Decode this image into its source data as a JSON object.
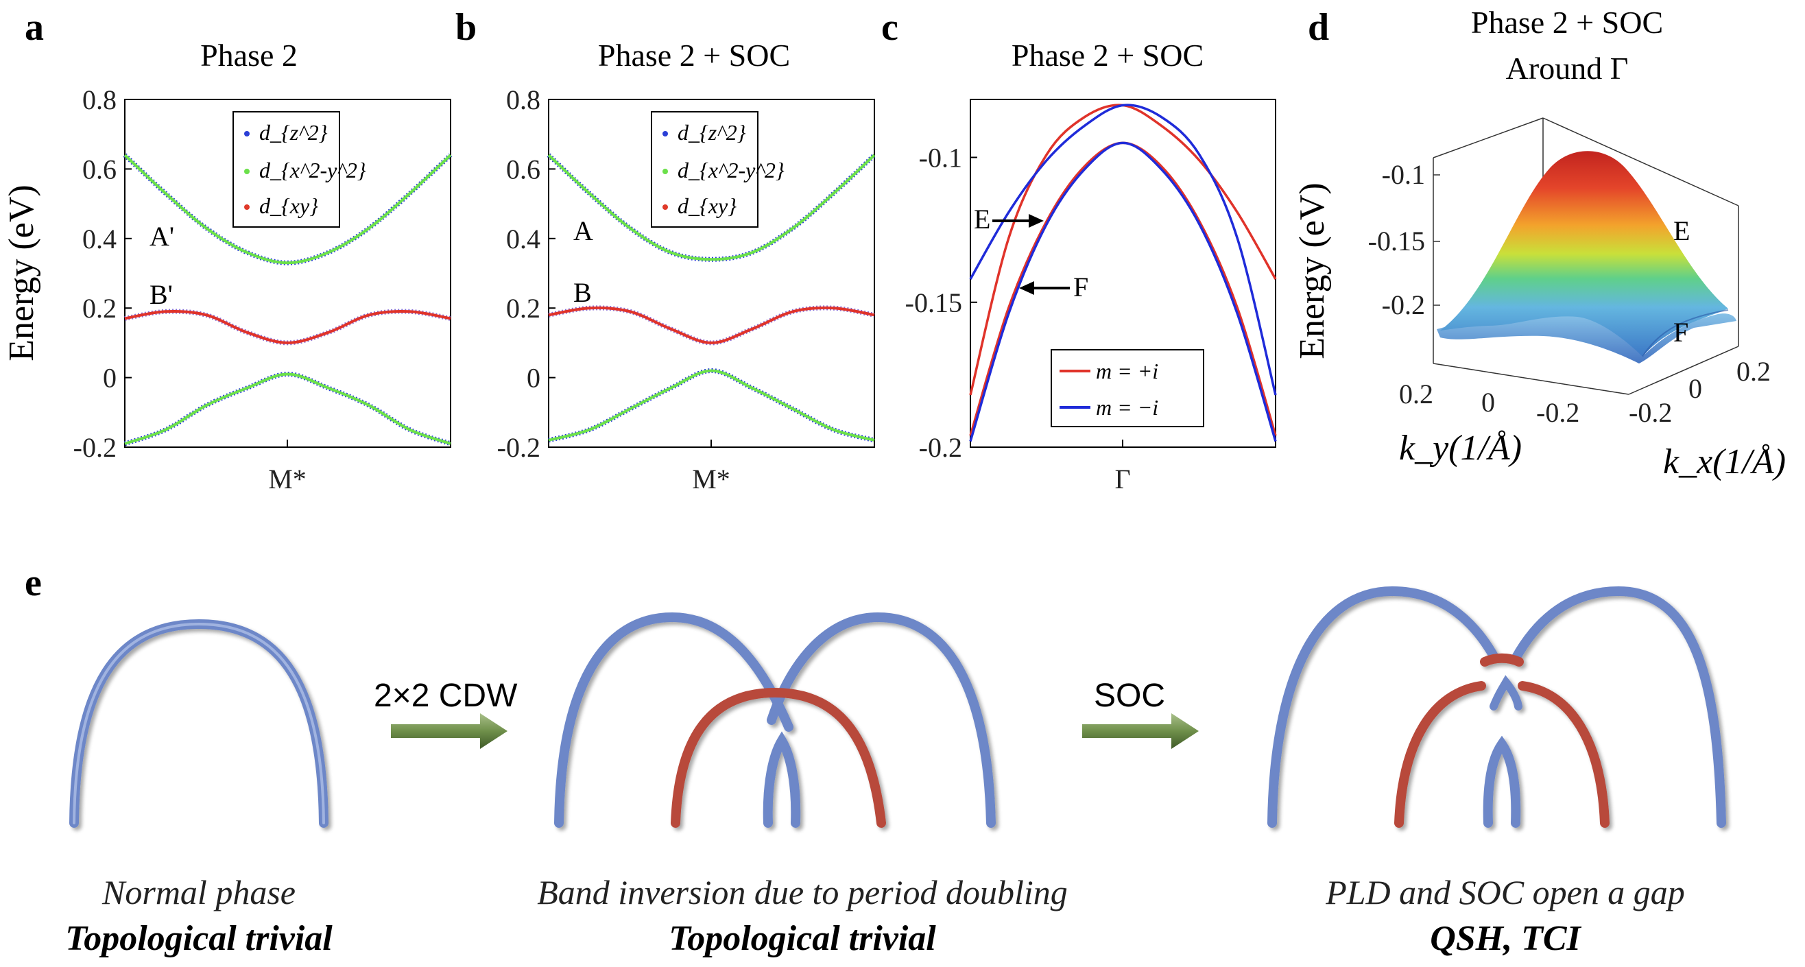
{
  "panels": {
    "a": {
      "letter": "a",
      "title": "Phase 2",
      "label_upper": "A'",
      "label_lower": "B'",
      "xtick": "M*"
    },
    "b": {
      "letter": "b",
      "title": "Phase 2 + SOC",
      "label_upper": "A",
      "label_lower": "B",
      "xtick": "M*"
    },
    "c": {
      "letter": "c",
      "title": "Phase 2 + SOC",
      "label_e": "E",
      "label_f": "F",
      "xtick": "Γ"
    },
    "d": {
      "letter": "d",
      "title_line1": "Phase 2 + SOC",
      "title_line2": "Around Γ",
      "label_e": "E",
      "label_f": "F",
      "ylabel": "Energy (eV)",
      "ky_label": "k_y(1/Å)",
      "kx_label": "k_x(1/Å)",
      "zticks": [
        "-0.1",
        "-0.15",
        "-0.2"
      ],
      "kyticks": [
        "0.2",
        "0",
        "-0.2"
      ],
      "kxticks": [
        "-0.2",
        "0",
        "0.2"
      ]
    },
    "e": {
      "letter": "e",
      "arrow1_label": "2×2 CDW",
      "arrow2_label": "SOC",
      "cap1_line1": "Normal phase",
      "cap1_line2": "Topological trivial",
      "cap2_line1": "Band inversion due to period doubling",
      "cap2_line2": "Topological trivial",
      "cap3_line1": "PLD and SOC open a gap",
      "cap3_line2": "QSH, TCI"
    }
  },
  "legend_ab": [
    "d_{z^2}",
    "d_{x^2-y^2}",
    "d_{xy}"
  ],
  "legend_c": [
    "m = +i",
    "m = −i"
  ],
  "colors": {
    "blue_dot": "#2b3fd6",
    "green_dot": "#6be04a",
    "red_dot": "#e03a2a",
    "red_line": "#e0332a",
    "blue_line": "#1f2bd9",
    "band_blue": "#6d87c8",
    "band_red": "#b8483a",
    "arrow_green": "#6f8f4a"
  },
  "chart_data": [
    {
      "type": "line",
      "title": "Phase 2",
      "ylabel": "Energy (eV)",
      "ylim": [
        -0.2,
        0.8
      ],
      "yticks": [
        "0.8",
        "0.6",
        "0.4",
        "0.2",
        "0",
        "-0.2"
      ],
      "x": [
        -1,
        -0.75,
        -0.5,
        -0.25,
        0,
        0.25,
        0.5,
        0.75,
        1
      ],
      "xtick": "M*",
      "series": [
        {
          "name": "A'",
          "values": [
            0.64,
            0.53,
            0.43,
            0.36,
            0.33,
            0.36,
            0.43,
            0.53,
            0.64
          ]
        },
        {
          "name": "B'",
          "values": [
            0.17,
            0.19,
            0.18,
            0.13,
            0.1,
            0.13,
            0.18,
            0.19,
            0.17
          ]
        },
        {
          "name": "lower",
          "values": [
            -0.19,
            -0.15,
            -0.08,
            -0.03,
            0.01,
            -0.03,
            -0.08,
            -0.15,
            -0.19
          ]
        }
      ]
    },
    {
      "type": "line",
      "title": "Phase 2 + SOC",
      "ylim": [
        -0.2,
        0.8
      ],
      "yticks": [
        "0.8",
        "0.6",
        "0.4",
        "0.2",
        "0",
        "-0.2"
      ],
      "x": [
        -1,
        -0.75,
        -0.5,
        -0.25,
        0,
        0.25,
        0.5,
        0.75,
        1
      ],
      "xtick": "M*",
      "series": [
        {
          "name": "A",
          "values": [
            0.64,
            0.53,
            0.43,
            0.36,
            0.34,
            0.36,
            0.43,
            0.53,
            0.64
          ]
        },
        {
          "name": "B",
          "values": [
            0.18,
            0.2,
            0.19,
            0.14,
            0.1,
            0.14,
            0.19,
            0.2,
            0.18
          ]
        },
        {
          "name": "lower",
          "values": [
            -0.18,
            -0.15,
            -0.09,
            -0.03,
            0.02,
            -0.03,
            -0.09,
            -0.15,
            -0.18
          ]
        }
      ]
    },
    {
      "type": "line",
      "title": "Phase 2 + SOC",
      "ylim": [
        -0.2,
        -0.08
      ],
      "yticks": [
        "-0.1",
        "-0.15",
        "-0.2"
      ],
      "xtick": "Γ",
      "x": [
        -1,
        -0.75,
        -0.5,
        -0.25,
        0,
        0.25,
        0.5,
        0.75,
        1
      ],
      "series": [
        {
          "name": "m = +i (1)",
          "color": "red",
          "values": [
            -0.182,
            -0.128,
            -0.099,
            -0.086,
            -0.082,
            -0.089,
            -0.101,
            -0.119,
            -0.142
          ]
        },
        {
          "name": "m = +i (2)",
          "color": "red",
          "values": [
            -0.196,
            -0.152,
            -0.122,
            -0.103,
            -0.095,
            -0.103,
            -0.122,
            -0.152,
            -0.196
          ]
        },
        {
          "name": "m = −i (1)",
          "color": "blue",
          "values": [
            -0.142,
            -0.119,
            -0.101,
            -0.089,
            -0.082,
            -0.086,
            -0.099,
            -0.128,
            -0.182
          ]
        },
        {
          "name": "m = −i (2)",
          "color": "blue",
          "values": [
            -0.198,
            -0.154,
            -0.123,
            -0.104,
            -0.095,
            -0.104,
            -0.123,
            -0.154,
            -0.198
          ]
        }
      ]
    }
  ]
}
